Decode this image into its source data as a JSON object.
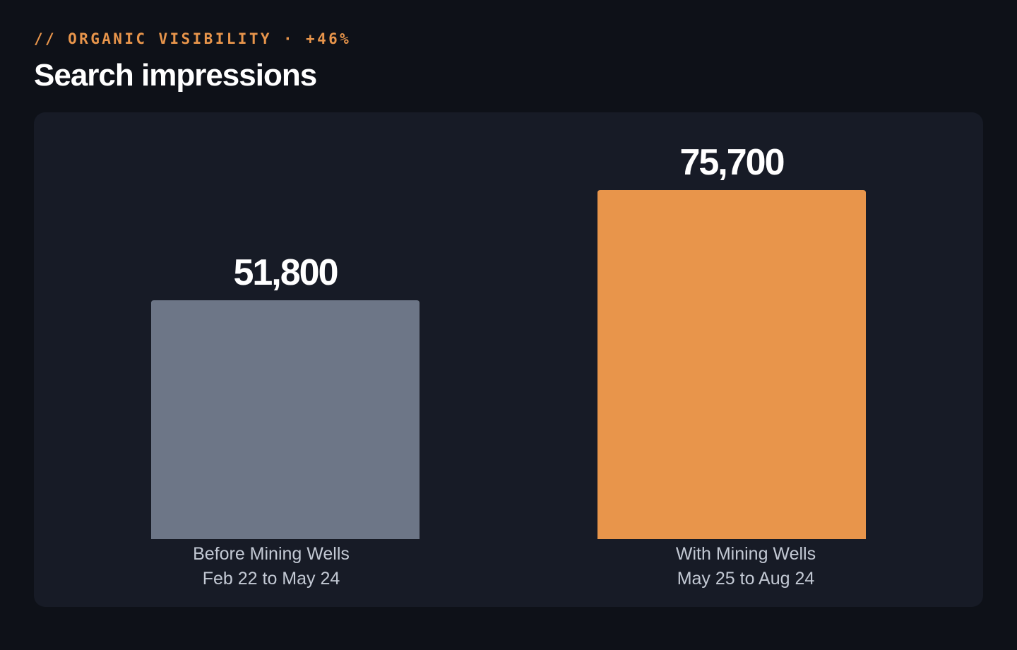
{
  "header": {
    "eyebrow": "// ORGANIC VISIBILITY · +46%",
    "title": "Search impressions"
  },
  "colors": {
    "background": "#0e1118",
    "panel": "#171b26",
    "accent": "#e8954b",
    "before_bar": "#6d7687",
    "after_bar": "#e8954b",
    "value_text": "#ffffff",
    "label_text": "#c3c9d4"
  },
  "chart_data": {
    "type": "bar",
    "title": "Search impressions",
    "xlabel": "",
    "ylabel": "",
    "ylim": [
      0,
      75700
    ],
    "grid": false,
    "legend": "none",
    "categories": [
      {
        "line1": "Before Mining Wells",
        "line2": "Feb 22 to May 24"
      },
      {
        "line1": "With Mining Wells",
        "line2": "May 25 to Aug 24"
      }
    ],
    "values": [
      51800,
      75700
    ],
    "value_labels": [
      "51,800",
      "75,700"
    ]
  }
}
